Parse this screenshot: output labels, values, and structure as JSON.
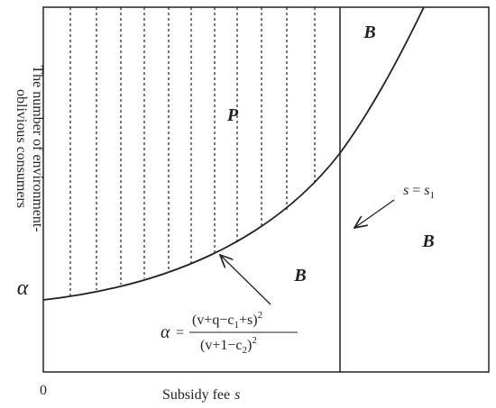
{
  "y_axis_label": [
    "The number of environment-",
    "oblivious consumers"
  ],
  "y_axis_symbol": "α",
  "origin": "0",
  "x_axis_label": "Subsidy fee",
  "x_axis_symbol": "s",
  "regions": [
    "B",
    "P",
    "B",
    "B"
  ],
  "threshold": {
    "lhs": "s",
    "eq": "=",
    "rhs": "s",
    "sub": "1"
  },
  "formula": {
    "lhs": "α",
    "eq": "=",
    "numerator": {
      "open": "(v+q−c",
      "sub": "1",
      "close": "+s)",
      "power": "2"
    },
    "denominator": {
      "open": "(v+1−c",
      "sub": "2",
      "close": ")",
      "power": "2"
    }
  }
}
